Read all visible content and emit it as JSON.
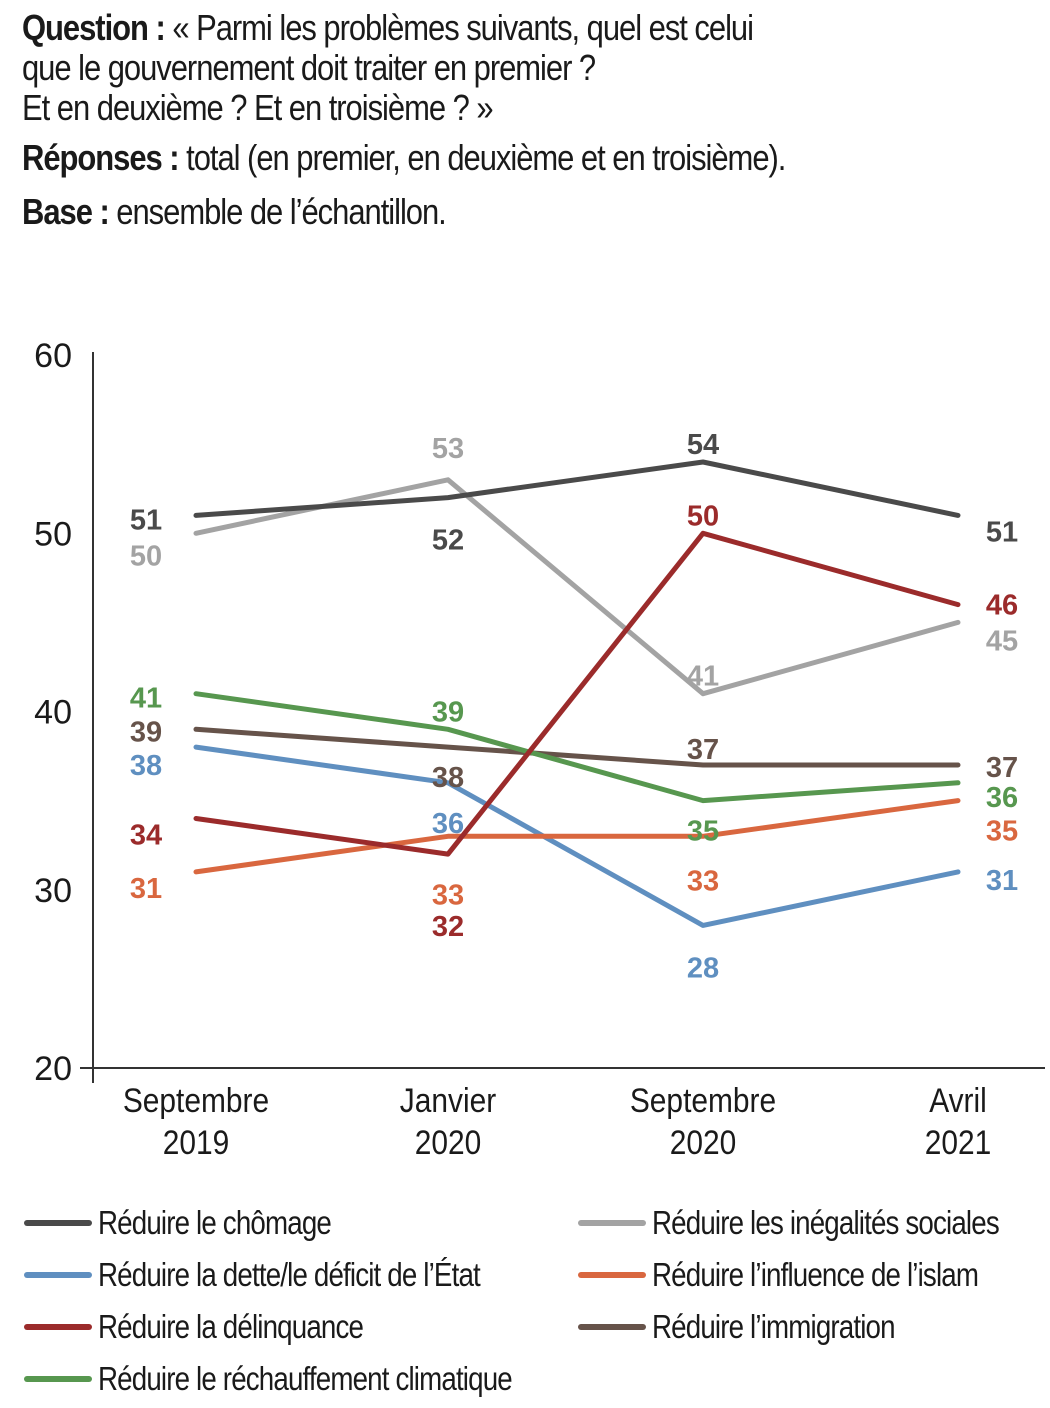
{
  "header": {
    "question_label": "Question :",
    "question_line1": " « Parmi les problèmes suivants, quel est celui",
    "question_line2": "que le gouvernement doit traiter en premier ?",
    "question_line3": "Et en deuxième ? Et en troisième ? »",
    "responses_label": "Réponses :",
    "responses_text": " total (en premier, en deuxième et en troisième).",
    "base_label": "Base :",
    "base_text": " ensemble de l’échantillon."
  },
  "chart_data": {
    "type": "line",
    "title": "",
    "xlabel": "",
    "ylabel": "",
    "ylim": [
      20,
      60
    ],
    "yticks": [
      "60",
      "50",
      "40",
      "30",
      "20"
    ],
    "ytick_values": [
      60,
      50,
      40,
      30,
      20
    ],
    "grid": false,
    "legend_placement": "bottom",
    "categories": [
      [
        "Septembre",
        "2019"
      ],
      [
        "Janvier",
        "2020"
      ],
      [
        "Septembre",
        "2020"
      ],
      [
        "Avril",
        "2021"
      ]
    ],
    "series": [
      {
        "name": "Réduire le chômage",
        "color": "#4a4a4a",
        "values": [
          51,
          52,
          54,
          51
        ]
      },
      {
        "name": "Réduire les inégalités sociales",
        "color": "#a3a3a3",
        "values": [
          50,
          53,
          41,
          45
        ]
      },
      {
        "name": "Réduire la dette/le déficit de l’État",
        "color": "#5f8fc0",
        "values": [
          38,
          36,
          28,
          31
        ]
      },
      {
        "name": "Réduire l’influence de l’islam",
        "color": "#d9673f",
        "values": [
          31,
          33,
          33,
          35
        ]
      },
      {
        "name": "Réduire la délinquance",
        "color": "#9b2b2b",
        "values": [
          34,
          32,
          50,
          46
        ]
      },
      {
        "name": "Réduire l’immigration",
        "color": "#66534a",
        "values": [
          39,
          38,
          37,
          37
        ]
      },
      {
        "name": "Réduire le réchauffement climatique",
        "color": "#57974f",
        "values": [
          41,
          39,
          35,
          36
        ]
      }
    ]
  }
}
